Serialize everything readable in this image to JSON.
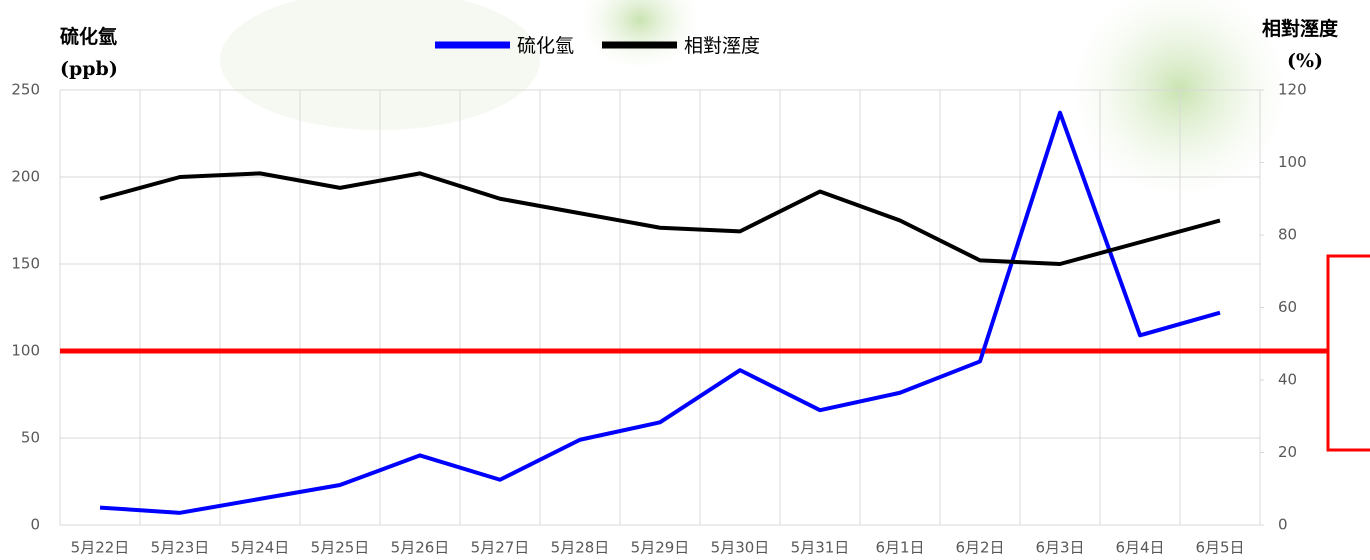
{
  "chart_data": {
    "type": "line",
    "y_label": [
      "硫化氫",
      "(ppb)"
    ],
    "y2_label": [
      "相對溼度",
      "(%)"
    ],
    "categories": [
      "5月22日",
      "5月23日",
      "5月24日",
      "5月25日",
      "5月26日",
      "5月27日",
      "5月28日",
      "5月29日",
      "5月30日",
      "5月31日",
      "6月1日",
      "6月2日",
      "6月3日",
      "6月4日",
      "6月5日"
    ],
    "series": [
      {
        "name": "硫化氫",
        "color": "#0000ff",
        "axis": "y",
        "values": [
          10,
          7,
          15,
          23,
          40,
          26,
          49,
          59,
          89,
          66,
          76,
          94,
          237,
          109,
          122
        ]
      },
      {
        "name": "相對溼度",
        "color": "#000000",
        "axis": "y2",
        "values": [
          90,
          96,
          97,
          93,
          97,
          90,
          86,
          82,
          81,
          92,
          84,
          73,
          72,
          78,
          84
        ]
      }
    ],
    "ylim": [
      0,
      250
    ],
    "yticks": [
      0,
      50,
      100,
      150,
      200,
      250
    ],
    "y2lim": [
      0,
      120
    ],
    "y2ticks": [
      0,
      20,
      40,
      60,
      80,
      100,
      120
    ],
    "reference_line": {
      "value": 100,
      "color": "#ff0000"
    },
    "grid": true
  }
}
